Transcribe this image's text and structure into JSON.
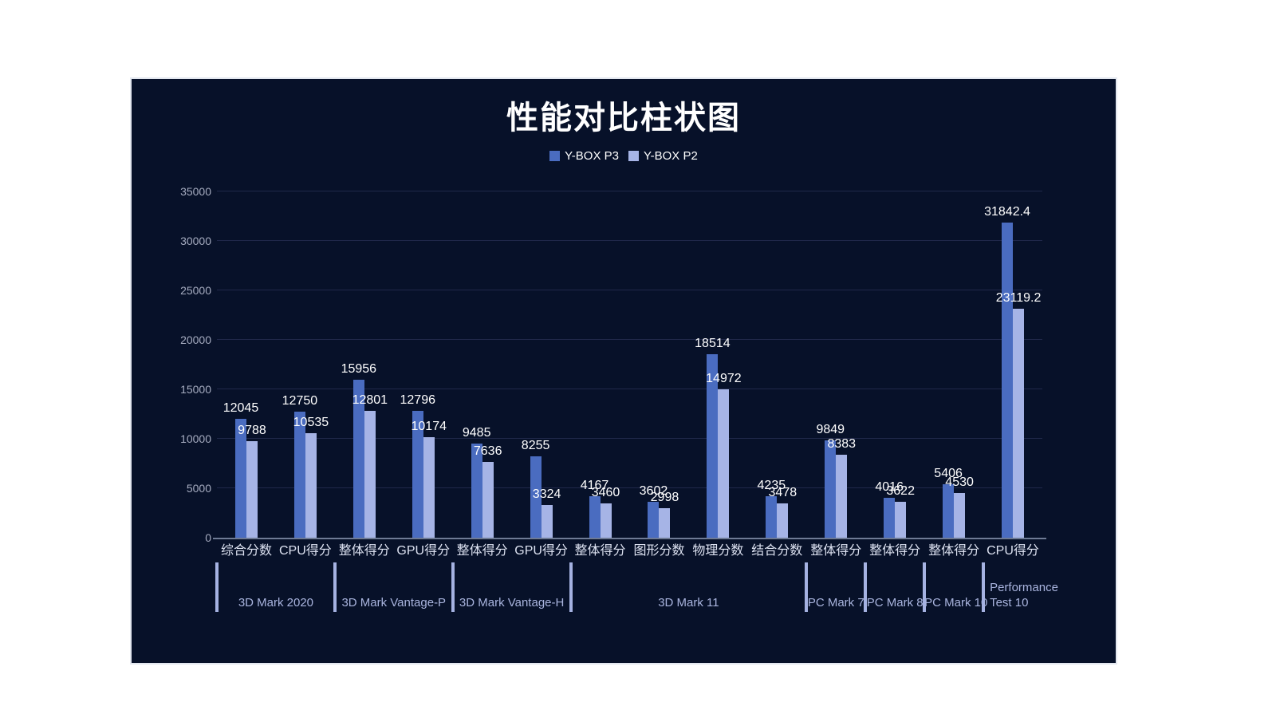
{
  "chart_data": {
    "type": "bar",
    "title": "性能对比柱状图",
    "xlabel": "",
    "ylabel": "",
    "legend_position": "top",
    "grid": true,
    "ylim": [
      0,
      35000
    ],
    "yticks": [
      0,
      5000,
      10000,
      15000,
      20000,
      25000,
      30000,
      35000
    ],
    "categories": [
      "综合分数",
      "CPU得分",
      "整体得分",
      "GPU得分",
      "整体得分",
      "GPU得分",
      "整体得分",
      "图形分数",
      "物理分数",
      "结合分数",
      "整体得分",
      "整体得分",
      "整体得分",
      "CPU得分"
    ],
    "series": [
      {
        "name": "Y-BOX P3",
        "values": [
          12045,
          12750,
          15956,
          12796,
          9485,
          8255,
          4167,
          3602,
          18514,
          4235,
          9849,
          4016,
          5406,
          31842.4
        ]
      },
      {
        "name": "Y-BOX P2",
        "values": [
          9788,
          10535,
          12801,
          10174,
          7636,
          3324,
          3460,
          2998,
          14972,
          3478,
          8383,
          3622,
          4530,
          23119.2
        ]
      }
    ],
    "groups": [
      {
        "label": "3D Mark 2020",
        "span": [
          0,
          2
        ]
      },
      {
        "label": "3D Mark Vantage-P",
        "span": [
          2,
          4
        ]
      },
      {
        "label": "3D Mark Vantage-H",
        "span": [
          4,
          6
        ]
      },
      {
        "label": "3D Mark 11",
        "span": [
          6,
          10
        ]
      },
      {
        "label": "PC Mark 7",
        "span": [
          10,
          11
        ]
      },
      {
        "label": "PC Mark 8",
        "span": [
          11,
          12
        ]
      },
      {
        "label": "PC Mark 10",
        "span": [
          12,
          13
        ]
      },
      {
        "label": "Performance Test 10",
        "span": [
          13,
          14
        ],
        "lines": [
          "Performance",
          "Test 10"
        ]
      }
    ],
    "colors": {
      "series_p3": "#4a6cc0",
      "series_p2": "#a6b4e6",
      "panel_background": "#071129",
      "gridline": "#20284a",
      "axis_line": "#6e7a94",
      "tick_text": "#a6acc0",
      "category_text": "#dde2f1",
      "group_text": "#a9b4de",
      "title_text": "#ffffff",
      "value_text": "#ffffff"
    }
  }
}
